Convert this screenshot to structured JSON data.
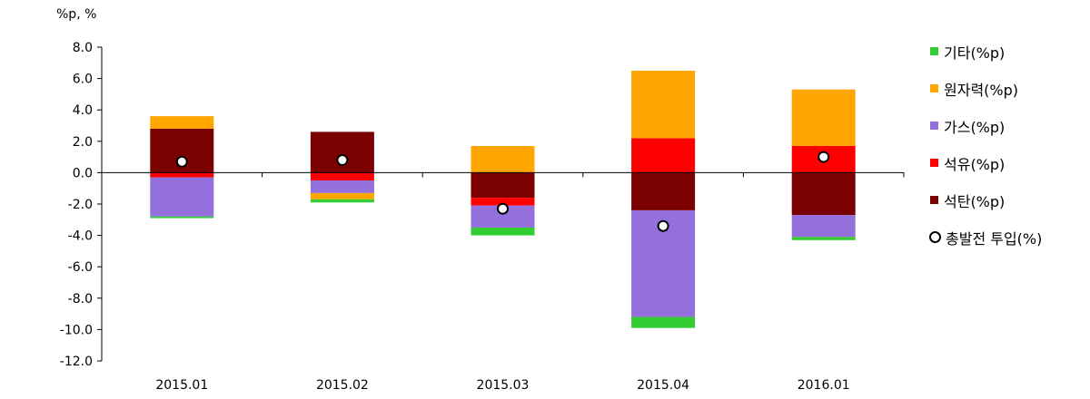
{
  "chart_data": {
    "type": "bar",
    "stacked": true,
    "unit_label": "%p, %",
    "categories": [
      "2015.01",
      "2015.02",
      "2015.03",
      "2015.04",
      "2016.01"
    ],
    "ylim": [
      -12.0,
      8.0
    ],
    "yticks": [
      "8.0",
      "6.0",
      "4.0",
      "2.0",
      "0.0",
      "-2.0",
      "-4.0",
      "-6.0",
      "-8.0",
      "-10.0",
      "-12.0"
    ],
    "series": [
      {
        "name": "석탄(%p)",
        "color": "#7b0000",
        "values": [
          2.8,
          2.6,
          -1.6,
          -2.4,
          -2.7
        ]
      },
      {
        "name": "석유(%p)",
        "color": "#ff0000",
        "values": [
          -0.3,
          -0.5,
          -0.5,
          2.2,
          1.7
        ]
      },
      {
        "name": "가스(%p)",
        "color": "#9370db",
        "values": [
          -2.5,
          -0.8,
          -1.4,
          -6.8,
          -1.4
        ]
      },
      {
        "name": "원자력(%p)",
        "color": "#ffa500",
        "values": [
          0.8,
          -0.4,
          1.7,
          4.3,
          3.6
        ]
      },
      {
        "name": "기타(%p)",
        "color": "#32cd32",
        "values": [
          -0.1,
          -0.2,
          -0.5,
          -0.7,
          -0.2
        ]
      }
    ],
    "line_series": {
      "name": "총발전 투입(%)",
      "values": [
        0.7,
        0.8,
        -2.3,
        -3.4,
        1.0
      ]
    },
    "legend_order": [
      "기타(%p)",
      "원자력(%p)",
      "가스(%p)",
      "석유(%p)",
      "석탄(%p)",
      "총발전 투입(%)"
    ],
    "legend_position": "right",
    "grid": false
  }
}
